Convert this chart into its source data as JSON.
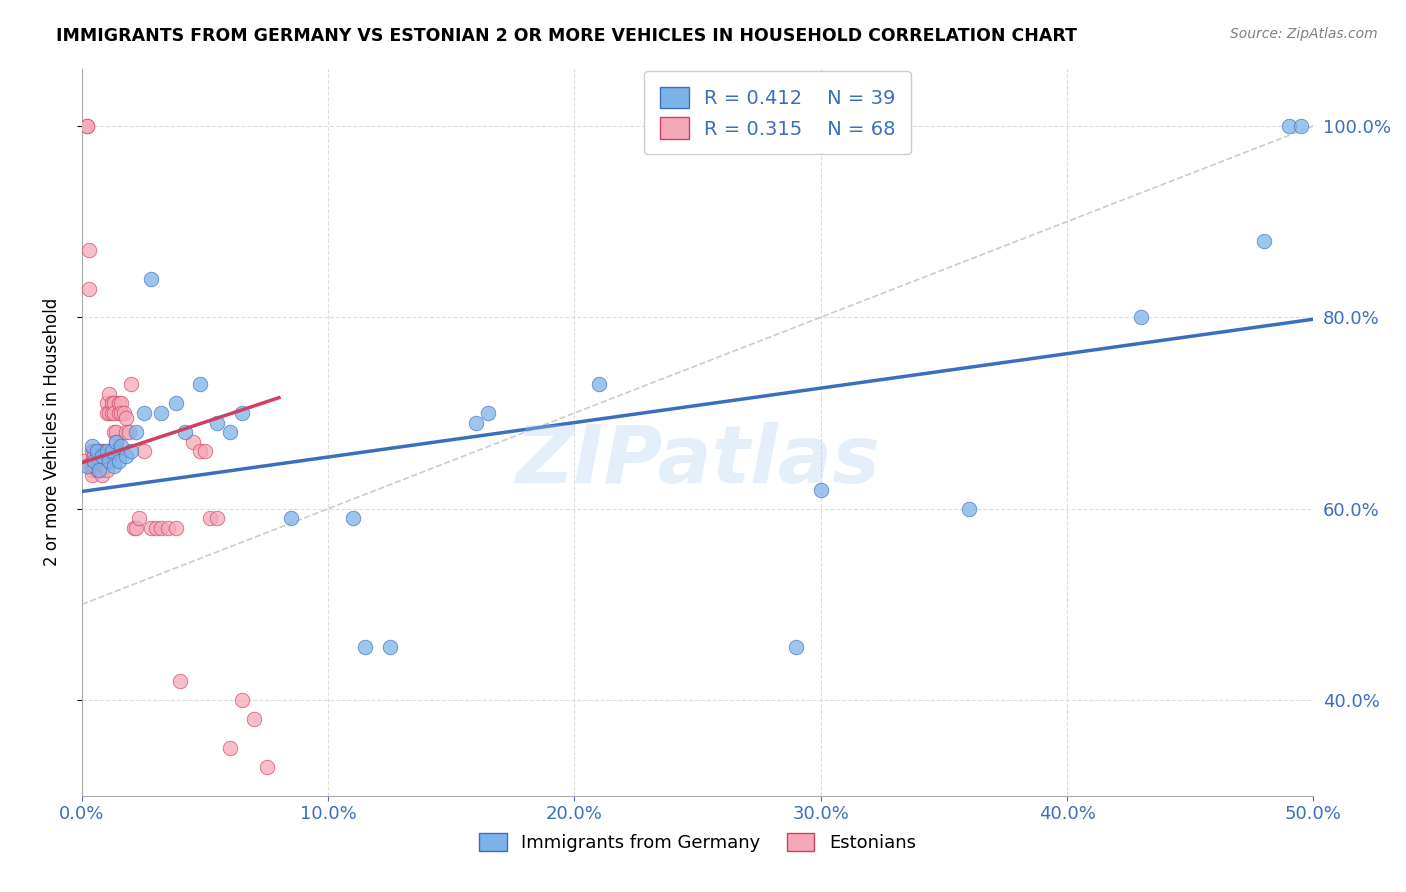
{
  "title": "IMMIGRANTS FROM GERMANY VS ESTONIAN 2 OR MORE VEHICLES IN HOUSEHOLD CORRELATION CHART",
  "source": "Source: ZipAtlas.com",
  "ylabel": "2 or more Vehicles in Household",
  "x_label_bottom_center": "Immigrants from Germany",
  "legend_label_1": "Immigrants from Germany",
  "legend_label_2": "Estonians",
  "R1": 0.412,
  "N1": 39,
  "R2": 0.315,
  "N2": 68,
  "xlim": [
    0.0,
    0.5
  ],
  "ylim": [
    0.3,
    1.06
  ],
  "xticks": [
    0.0,
    0.1,
    0.2,
    0.3,
    0.4,
    0.5
  ],
  "yticks_right": [
    0.4,
    0.6,
    0.8,
    1.0
  ],
  "color_blue": "#7EB3E8",
  "color_pink": "#F4A8B8",
  "color_blue_line": "#3A6FBF",
  "color_pink_line": "#D04060",
  "watermark": "ZIPatlas",
  "blue_dots_x": [
    0.002,
    0.004,
    0.005,
    0.006,
    0.007,
    0.008,
    0.01,
    0.011,
    0.012,
    0.013,
    0.014,
    0.015,
    0.016,
    0.018,
    0.02,
    0.022,
    0.025,
    0.028,
    0.032,
    0.038,
    0.042,
    0.048,
    0.055,
    0.06,
    0.065,
    0.085,
    0.11,
    0.115,
    0.125,
    0.16,
    0.165,
    0.21,
    0.29,
    0.3,
    0.36,
    0.43,
    0.48,
    0.49,
    0.495
  ],
  "blue_dots_y": [
    0.645,
    0.665,
    0.65,
    0.66,
    0.64,
    0.655,
    0.66,
    0.65,
    0.66,
    0.645,
    0.67,
    0.65,
    0.665,
    0.655,
    0.66,
    0.68,
    0.7,
    0.84,
    0.7,
    0.71,
    0.68,
    0.73,
    0.69,
    0.68,
    0.7,
    0.59,
    0.59,
    0.455,
    0.455,
    0.69,
    0.7,
    0.73,
    0.455,
    0.62,
    0.6,
    0.8,
    0.88,
    1.0,
    1.0
  ],
  "pink_dots_x": [
    0.001,
    0.002,
    0.002,
    0.003,
    0.003,
    0.004,
    0.004,
    0.004,
    0.004,
    0.005,
    0.005,
    0.005,
    0.006,
    0.006,
    0.006,
    0.007,
    0.007,
    0.007,
    0.007,
    0.008,
    0.008,
    0.008,
    0.008,
    0.009,
    0.009,
    0.009,
    0.01,
    0.01,
    0.01,
    0.01,
    0.011,
    0.011,
    0.012,
    0.012,
    0.013,
    0.013,
    0.013,
    0.014,
    0.014,
    0.014,
    0.015,
    0.015,
    0.016,
    0.016,
    0.017,
    0.018,
    0.018,
    0.019,
    0.02,
    0.021,
    0.022,
    0.023,
    0.025,
    0.028,
    0.03,
    0.032,
    0.035,
    0.038,
    0.04,
    0.045,
    0.048,
    0.05,
    0.052,
    0.055,
    0.06,
    0.065,
    0.07,
    0.075
  ],
  "pink_dots_y": [
    0.65,
    1.0,
    1.0,
    0.87,
    0.83,
    0.66,
    0.65,
    0.64,
    0.635,
    0.66,
    0.655,
    0.645,
    0.66,
    0.65,
    0.64,
    0.66,
    0.66,
    0.65,
    0.64,
    0.66,
    0.65,
    0.64,
    0.635,
    0.66,
    0.655,
    0.645,
    0.66,
    0.71,
    0.7,
    0.64,
    0.72,
    0.7,
    0.71,
    0.7,
    0.71,
    0.7,
    0.68,
    0.68,
    0.67,
    0.66,
    0.7,
    0.71,
    0.71,
    0.7,
    0.7,
    0.695,
    0.68,
    0.68,
    0.73,
    0.58,
    0.58,
    0.59,
    0.66,
    0.58,
    0.58,
    0.58,
    0.58,
    0.58,
    0.42,
    0.67,
    0.66,
    0.66,
    0.59,
    0.59,
    0.35,
    0.4,
    0.38,
    0.33
  ],
  "blue_trend_x": [
    0.0,
    0.5
  ],
  "blue_trend_y_intercept": 0.618,
  "blue_trend_slope": 0.36,
  "pink_trend_x": [
    0.0,
    0.08
  ],
  "pink_trend_y_intercept": 0.648,
  "pink_trend_slope": 0.85,
  "ref_line_x": [
    0.0,
    0.5
  ],
  "ref_line_y": [
    0.5,
    1.0
  ]
}
